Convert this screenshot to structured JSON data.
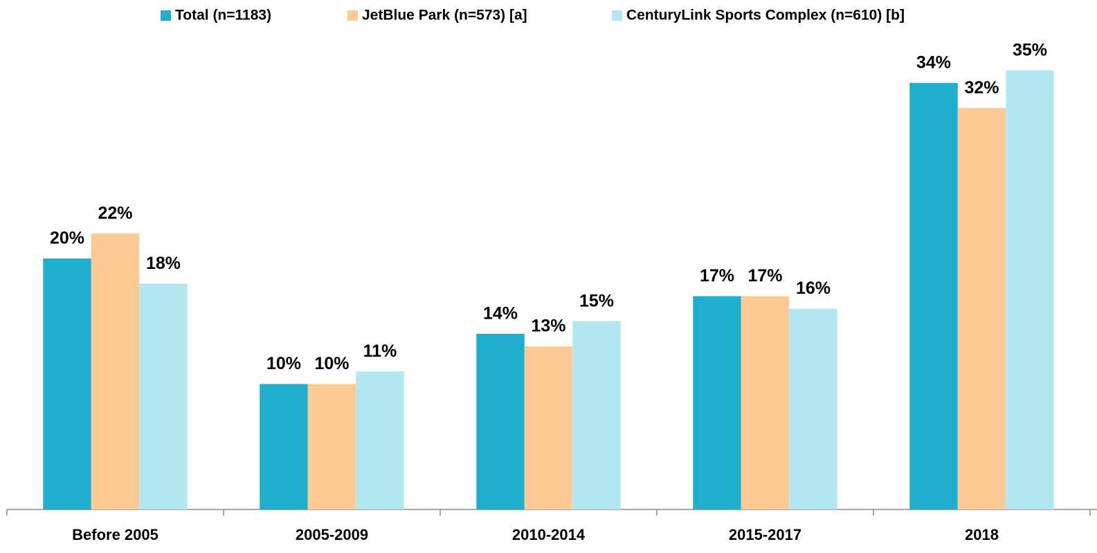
{
  "chart_data": {
    "type": "bar",
    "categories": [
      "Before 2005",
      "2005-2009",
      "2010-2014",
      "2015-2017",
      "2018"
    ],
    "series": [
      {
        "name": "Total (n=1183)",
        "color": "#20aecf",
        "values": [
          20,
          10,
          14,
          17,
          34
        ],
        "value_labels": [
          "20%",
          "10%",
          "14%",
          "17%",
          "34%"
        ]
      },
      {
        "name": "JetBlue Park (n=573)  [a]",
        "color": "#fdca96",
        "values": [
          22,
          10,
          13,
          17,
          32
        ],
        "value_labels": [
          "22%",
          "10%",
          "13%",
          "17%",
          "32%"
        ]
      },
      {
        "name": "CenturyLink Sports Complex (n=610)  [b]",
        "color": "#b3e8f3",
        "values": [
          18,
          11,
          15,
          16,
          35
        ],
        "value_labels": [
          "18%",
          "11%",
          "15%",
          "16%",
          "35%"
        ]
      }
    ],
    "ylim": [
      0,
      40
    ],
    "legend": "top"
  }
}
